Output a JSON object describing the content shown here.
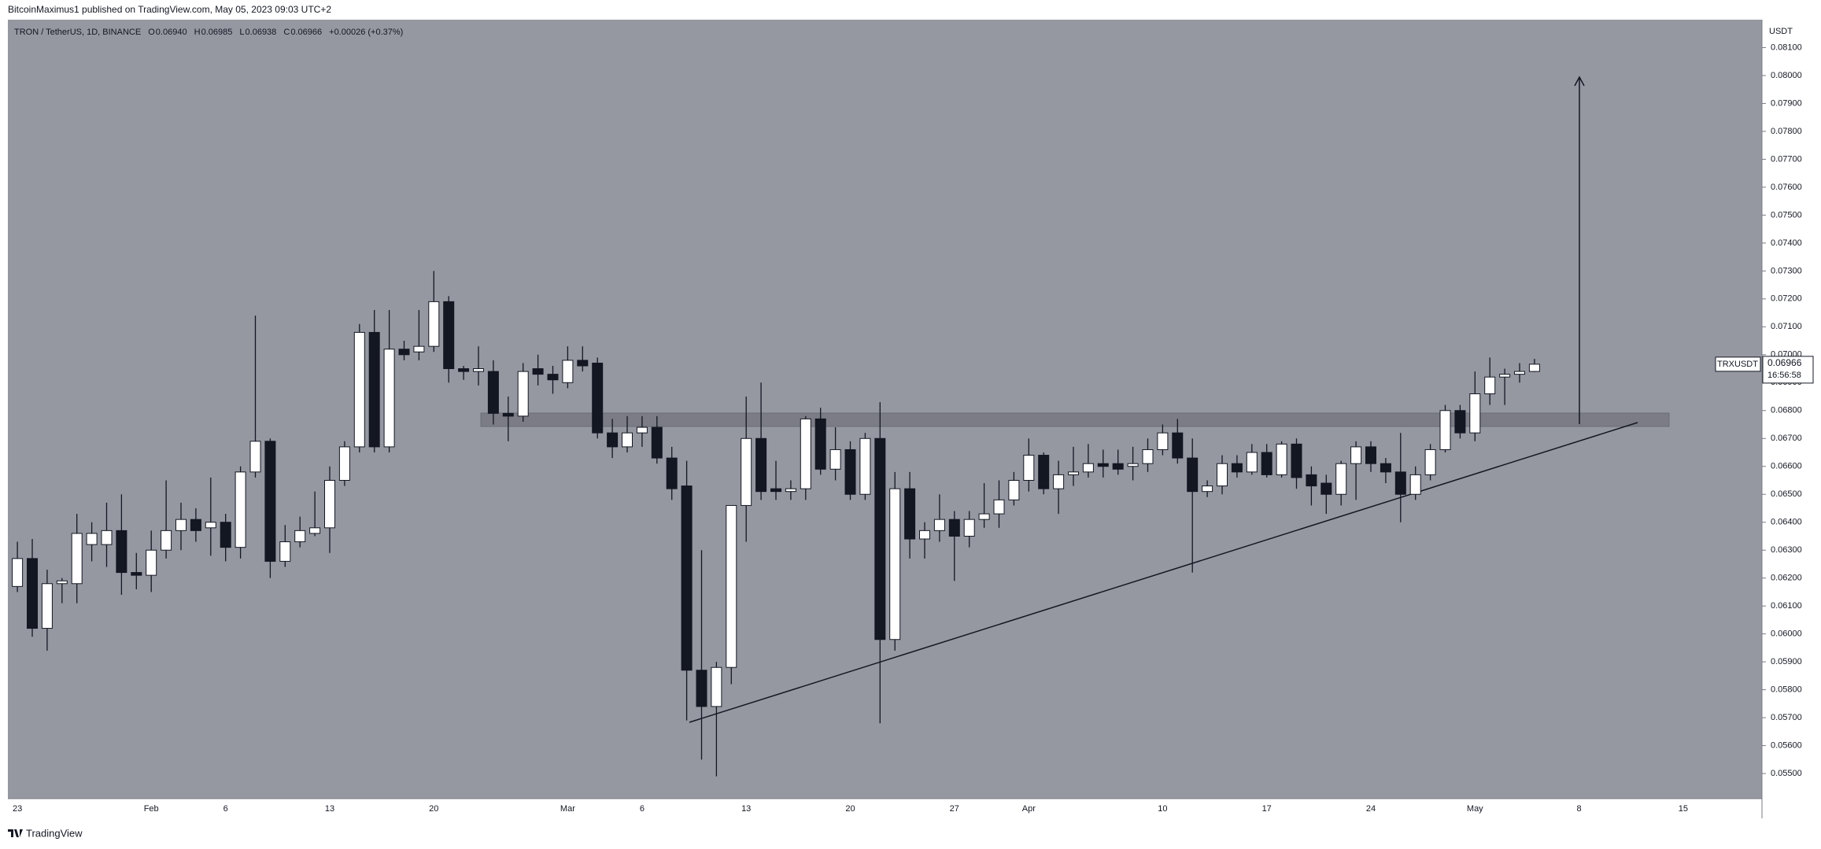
{
  "header": {
    "byline": "BitcoinMaximus1 published on TradingView.com, May 05, 2023 09:03 UTC+2",
    "footer": "TradingView"
  },
  "chart_data": {
    "type": "candlestick",
    "legend": {
      "symbol": "TRON / TetherUS, 1D, BINANCE",
      "o_label": "O",
      "o": "0.06940",
      "h_label": "H",
      "h": "0.06985",
      "l_label": "L",
      "l": "0.06938",
      "c_label": "C",
      "c": "0.06966",
      "change": "+0.00026 (+0.37%)"
    },
    "y_axis_label": "USDT",
    "price_tag": {
      "ticker": "TRXUSDT",
      "price": "0.06966",
      "countdown": "16:56:58"
    },
    "up_color": "#ffffff",
    "down_color": "#131722",
    "outline_color": "#131722",
    "grid": false,
    "ylim": [
      0.0541,
      0.082
    ],
    "yticks": [
      {
        "value": 0.081,
        "label": "0.08100"
      },
      {
        "value": 0.08,
        "label": "0.08000"
      },
      {
        "value": 0.079,
        "label": "0.07900"
      },
      {
        "value": 0.078,
        "label": "0.07800"
      },
      {
        "value": 0.077,
        "label": "0.07700"
      },
      {
        "value": 0.076,
        "label": "0.07600"
      },
      {
        "value": 0.075,
        "label": "0.07500"
      },
      {
        "value": 0.074,
        "label": "0.07400"
      },
      {
        "value": 0.073,
        "label": "0.07300"
      },
      {
        "value": 0.072,
        "label": "0.07200"
      },
      {
        "value": 0.071,
        "label": "0.07100"
      },
      {
        "value": 0.07,
        "label": "0.07000"
      },
      {
        "value": 0.069,
        "label": "0.06900"
      },
      {
        "value": 0.068,
        "label": "0.06800"
      },
      {
        "value": 0.067,
        "label": "0.06700"
      },
      {
        "value": 0.066,
        "label": "0.06600"
      },
      {
        "value": 0.065,
        "label": "0.06500"
      },
      {
        "value": 0.064,
        "label": "0.06400"
      },
      {
        "value": 0.063,
        "label": "0.06300"
      },
      {
        "value": 0.062,
        "label": "0.06200"
      },
      {
        "value": 0.061,
        "label": "0.06100"
      },
      {
        "value": 0.06,
        "label": "0.06000"
      },
      {
        "value": 0.059,
        "label": "0.05900"
      },
      {
        "value": 0.058,
        "label": "0.05800"
      },
      {
        "value": 0.057,
        "label": "0.05700"
      },
      {
        "value": 0.056,
        "label": "0.05600"
      },
      {
        "value": 0.055,
        "label": "0.05500"
      }
    ],
    "categories": [
      "23",
      null,
      null,
      null,
      null,
      null,
      null,
      null,
      null,
      "Feb",
      null,
      null,
      null,
      null,
      "6",
      null,
      null,
      null,
      null,
      null,
      null,
      "13",
      null,
      null,
      null,
      null,
      null,
      null,
      "20",
      null,
      null,
      null,
      null,
      null,
      null,
      null,
      null,
      "Mar",
      null,
      null,
      null,
      null,
      "6",
      null,
      null,
      null,
      null,
      null,
      null,
      "13",
      null,
      null,
      null,
      null,
      null,
      null,
      "20",
      null,
      null,
      null,
      null,
      null,
      null,
      "27",
      null,
      null,
      null,
      null,
      "Apr",
      null,
      null,
      null,
      null,
      null,
      null,
      null,
      null,
      "10",
      null,
      null,
      null,
      null,
      null,
      null,
      "17",
      null,
      null,
      null,
      null,
      null,
      null,
      "24",
      null,
      null,
      null,
      null,
      null,
      null,
      "May",
      null,
      null,
      null,
      null,
      null,
      null,
      "8",
      null,
      null,
      null,
      null,
      null,
      null,
      "15"
    ],
    "open": [
      0.0617,
      0.0627,
      0.0602,
      0.0618,
      0.0618,
      0.0632,
      0.0632,
      0.0637,
      0.0622,
      0.0621,
      0.063,
      0.0637,
      0.0641,
      0.0638,
      0.064,
      0.0631,
      0.0658,
      0.0669,
      0.0626,
      0.0633,
      0.0636,
      0.0638,
      0.0655,
      0.0667,
      0.0708,
      0.0667,
      0.0702,
      0.0701,
      0.0703,
      0.0719,
      0.0695,
      0.0694,
      0.0694,
      0.0679,
      0.0678,
      0.0695,
      0.0693,
      0.069,
      0.0698,
      0.0697,
      0.0672,
      0.0667,
      0.0672,
      0.0674,
      0.0663,
      0.0653,
      0.0587,
      0.0574,
      0.0588,
      0.0646,
      0.067,
      0.0652,
      0.0651,
      0.0652,
      0.0677,
      0.0659,
      0.0666,
      0.065,
      0.067,
      0.0598,
      0.0652,
      0.0634,
      0.0637,
      0.0641,
      0.0635,
      0.0641,
      0.0643,
      0.0648,
      0.0655,
      0.0664,
      0.0652,
      0.0657,
      0.0658,
      0.0661,
      0.0661,
      0.066,
      0.0661,
      0.0666,
      0.0672,
      0.0663,
      0.0651,
      0.0653,
      0.0661,
      0.0658,
      0.0665,
      0.0657,
      0.0668,
      0.0657,
      0.0654,
      0.065,
      0.0661,
      0.0667,
      0.0661,
      0.0658,
      0.065,
      0.0657,
      0.0666,
      0.068,
      0.0672,
      0.0686,
      0.0692,
      0.0693,
      0.0694,
      null,
      null,
      null,
      null,
      null,
      null,
      null,
      null,
      null,
      null
    ],
    "high": [
      0.0633,
      0.0634,
      0.0623,
      0.062,
      0.0643,
      0.064,
      0.0647,
      0.065,
      0.0629,
      0.0637,
      0.0655,
      0.0647,
      0.0645,
      0.0656,
      0.0643,
      0.066,
      0.0714,
      0.067,
      0.0639,
      0.0642,
      0.0651,
      0.066,
      0.0669,
      0.0711,
      0.0716,
      0.0716,
      0.0705,
      0.0716,
      0.073,
      0.0721,
      0.0696,
      0.0703,
      0.0698,
      0.0685,
      0.0697,
      0.07,
      0.0696,
      0.0703,
      0.0703,
      0.0699,
      0.0677,
      0.0678,
      0.0678,
      0.0678,
      0.0667,
      0.0662,
      0.063,
      0.059,
      0.0646,
      0.0685,
      0.069,
      0.0662,
      0.0655,
      0.0678,
      0.0681,
      0.0674,
      0.0669,
      0.0672,
      0.0683,
      0.0658,
      0.0658,
      0.064,
      0.065,
      0.0644,
      0.0644,
      0.0654,
      0.0655,
      0.0658,
      0.067,
      0.0665,
      0.0662,
      0.0667,
      0.0668,
      0.0666,
      0.0666,
      0.0667,
      0.067,
      0.0675,
      0.0677,
      0.067,
      0.0655,
      0.0664,
      0.0664,
      0.0668,
      0.0668,
      0.0669,
      0.067,
      0.066,
      0.0657,
      0.0662,
      0.0669,
      0.0669,
      0.0663,
      0.0672,
      0.066,
      0.0668,
      0.0682,
      0.0682,
      0.0694,
      0.0699,
      0.0695,
      0.0697,
      0.06985,
      null,
      null,
      null,
      null,
      null,
      null,
      null,
      null,
      null,
      null
    ],
    "low": [
      0.0615,
      0.0599,
      0.0594,
      0.0611,
      0.0611,
      0.0626,
      0.0624,
      0.0614,
      0.0616,
      0.0615,
      0.0627,
      0.063,
      0.0633,
      0.0628,
      0.0626,
      0.0627,
      0.0656,
      0.062,
      0.0624,
      0.0631,
      0.0635,
      0.0629,
      0.0653,
      0.0665,
      0.0665,
      0.0665,
      0.0698,
      0.0698,
      0.0701,
      0.069,
      0.0691,
      0.0689,
      0.0675,
      0.0669,
      0.0676,
      0.0689,
      0.0686,
      0.0688,
      0.0694,
      0.067,
      0.0663,
      0.0665,
      0.0667,
      0.0661,
      0.0648,
      0.0569,
      0.0555,
      0.0549,
      0.0582,
      0.0633,
      0.0648,
      0.0648,
      0.0648,
      0.0648,
      0.0657,
      0.0655,
      0.0648,
      0.0648,
      0.0568,
      0.0594,
      0.0627,
      0.0627,
      0.0633,
      0.0619,
      0.0631,
      0.0638,
      0.0638,
      0.0646,
      0.0651,
      0.065,
      0.0643,
      0.0653,
      0.0656,
      0.0656,
      0.0657,
      0.0655,
      0.0658,
      0.0664,
      0.0661,
      0.0622,
      0.0649,
      0.065,
      0.0656,
      0.0657,
      0.0656,
      0.0656,
      0.0652,
      0.0646,
      0.0643,
      0.0646,
      0.0648,
      0.0658,
      0.0654,
      0.064,
      0.0648,
      0.0655,
      0.0665,
      0.067,
      0.0669,
      0.0682,
      0.0682,
      0.069,
      0.06938,
      null,
      null,
      null,
      null,
      null,
      null,
      null,
      null,
      null,
      null
    ],
    "close": [
      0.0627,
      0.0602,
      0.0618,
      0.0619,
      0.0636,
      0.0636,
      0.0637,
      0.0622,
      0.0621,
      0.063,
      0.0637,
      0.0641,
      0.0637,
      0.064,
      0.0631,
      0.0658,
      0.0669,
      0.0626,
      0.0633,
      0.0637,
      0.0638,
      0.0655,
      0.0667,
      0.0708,
      0.0667,
      0.0702,
      0.07,
      0.0703,
      0.0719,
      0.0695,
      0.0694,
      0.0695,
      0.0679,
      0.0678,
      0.0694,
      0.0693,
      0.0691,
      0.0698,
      0.0696,
      0.0672,
      0.0667,
      0.0672,
      0.0674,
      0.0663,
      0.0652,
      0.0587,
      0.0574,
      0.0588,
      0.0646,
      0.067,
      0.0651,
      0.0651,
      0.0652,
      0.0677,
      0.0659,
      0.0666,
      0.065,
      0.067,
      0.0598,
      0.0652,
      0.0634,
      0.0637,
      0.0641,
      0.0635,
      0.0641,
      0.0643,
      0.0648,
      0.0655,
      0.0664,
      0.0652,
      0.0657,
      0.0658,
      0.0661,
      0.066,
      0.0659,
      0.0661,
      0.0666,
      0.0672,
      0.0663,
      0.0651,
      0.0653,
      0.0661,
      0.0658,
      0.0665,
      0.0657,
      0.0668,
      0.0656,
      0.0653,
      0.065,
      0.0661,
      0.0667,
      0.0661,
      0.0658,
      0.065,
      0.0657,
      0.0666,
      0.068,
      0.0672,
      0.0686,
      0.0692,
      0.0693,
      0.0694,
      0.06966,
      null,
      null,
      null,
      null,
      null,
      null,
      null,
      null,
      null,
      null
    ]
  }
}
